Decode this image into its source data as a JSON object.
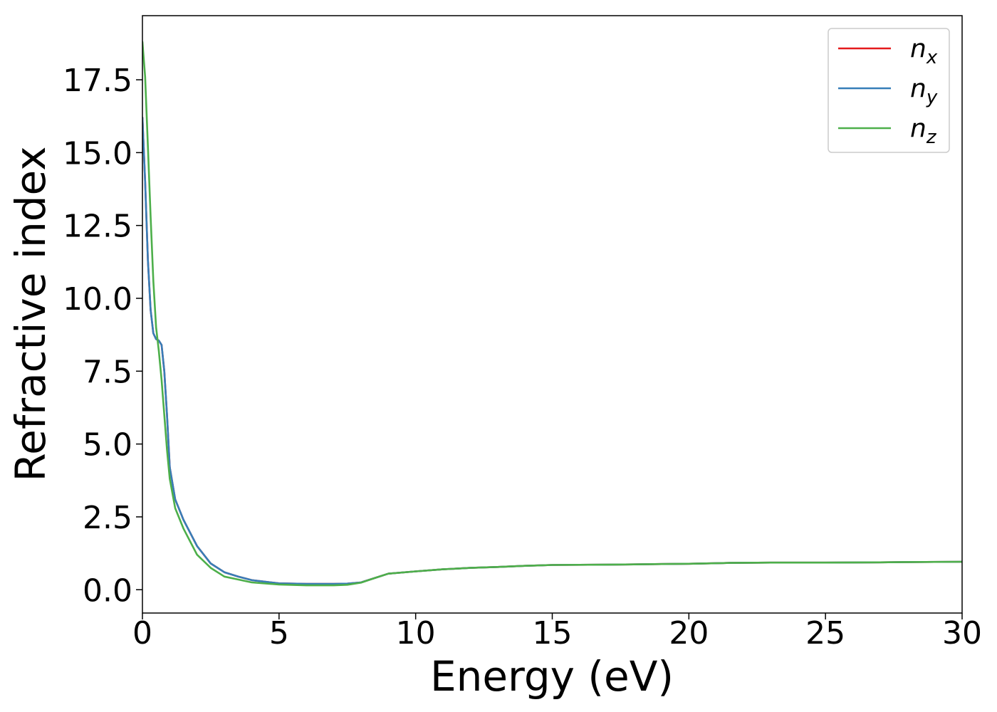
{
  "chart_data": {
    "type": "line",
    "xlabel": "Energy (eV)",
    "ylabel": "Refractive index",
    "xlim": [
      0,
      30
    ],
    "ylim": [
      -0.8,
      19.7
    ],
    "xticks": [
      0,
      5,
      10,
      15,
      20,
      25,
      30
    ],
    "xtick_labels": [
      "0",
      "5",
      "10",
      "15",
      "20",
      "25",
      "30"
    ],
    "yticks": [
      0,
      2.5,
      5,
      7.5,
      10,
      12.5,
      15,
      17.5
    ],
    "ytick_labels": [
      "0.0",
      "2.5",
      "5.0",
      "7.5",
      "10.0",
      "12.5",
      "15.0",
      "17.5"
    ],
    "grid": false,
    "legend_position": "top-right",
    "series": [
      {
        "name": "n_x",
        "legend_base": "n",
        "legend_sub": "x",
        "color": "#e41a1c",
        "x": [
          0,
          0.1,
          0.2,
          0.3,
          0.4,
          0.5,
          0.6,
          0.7,
          0.8,
          0.9,
          1.0,
          1.2,
          1.5,
          2.0,
          2.5,
          3.0,
          3.5,
          4.0,
          5.0,
          6.0,
          7.0,
          7.5,
          8.0,
          8.5,
          9.0,
          10,
          11,
          12,
          13,
          14,
          15,
          17,
          19,
          20,
          21.5,
          23,
          25,
          27,
          28,
          30
        ],
        "y": [
          16.2,
          14.0,
          11.3,
          9.6,
          8.8,
          8.6,
          8.55,
          8.4,
          7.5,
          6.0,
          4.2,
          3.1,
          2.4,
          1.5,
          0.9,
          0.6,
          0.45,
          0.33,
          0.22,
          0.2,
          0.2,
          0.21,
          0.25,
          0.4,
          0.55,
          0.63,
          0.7,
          0.75,
          0.78,
          0.82,
          0.85,
          0.86,
          0.88,
          0.89,
          0.92,
          0.93,
          0.93,
          0.94,
          0.95,
          0.96
        ]
      },
      {
        "name": "n_y",
        "legend_base": "n",
        "legend_sub": "y",
        "color": "#377eb8",
        "x": [
          0,
          0.1,
          0.2,
          0.3,
          0.4,
          0.5,
          0.6,
          0.7,
          0.8,
          0.9,
          1.0,
          1.2,
          1.5,
          2.0,
          2.5,
          3.0,
          3.5,
          4.0,
          5.0,
          6.0,
          7.0,
          7.5,
          8.0,
          8.5,
          9.0,
          10,
          11,
          12,
          13,
          14,
          15,
          17,
          19,
          20,
          21.5,
          23,
          25,
          27,
          28,
          30
        ],
        "y": [
          16.2,
          14.0,
          11.3,
          9.6,
          8.8,
          8.6,
          8.55,
          8.4,
          7.5,
          6.0,
          4.2,
          3.1,
          2.4,
          1.5,
          0.9,
          0.6,
          0.45,
          0.33,
          0.22,
          0.2,
          0.2,
          0.21,
          0.25,
          0.4,
          0.55,
          0.63,
          0.7,
          0.75,
          0.78,
          0.82,
          0.85,
          0.86,
          0.88,
          0.89,
          0.92,
          0.93,
          0.93,
          0.94,
          0.95,
          0.96
        ]
      },
      {
        "name": "n_z",
        "legend_base": "n",
        "legend_sub": "z",
        "color": "#4daf4a",
        "x": [
          0,
          0.1,
          0.2,
          0.3,
          0.4,
          0.5,
          0.6,
          0.7,
          0.8,
          0.9,
          1.0,
          1.2,
          1.5,
          2.0,
          2.5,
          3.0,
          3.5,
          4.0,
          5.0,
          6.0,
          7.0,
          7.5,
          8.0,
          8.5,
          9.0,
          10,
          11,
          12,
          13,
          14,
          15,
          17,
          19,
          20,
          21.5,
          23,
          25,
          27,
          28,
          30
        ],
        "y": [
          18.8,
          17.6,
          15.2,
          12.8,
          10.6,
          9.0,
          8.2,
          7.2,
          6.0,
          4.8,
          3.8,
          2.8,
          2.1,
          1.2,
          0.75,
          0.45,
          0.35,
          0.25,
          0.18,
          0.15,
          0.15,
          0.17,
          0.24,
          0.4,
          0.55,
          0.63,
          0.7,
          0.75,
          0.78,
          0.82,
          0.85,
          0.86,
          0.88,
          0.89,
          0.92,
          0.93,
          0.93,
          0.94,
          0.95,
          0.96
        ]
      }
    ]
  }
}
